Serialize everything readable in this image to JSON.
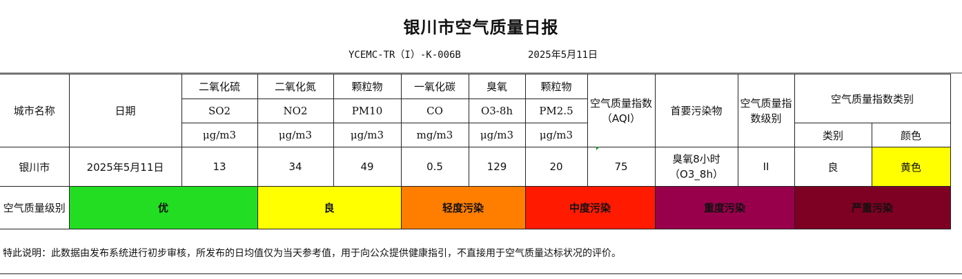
{
  "report": {
    "title": "银川市空气质量日报",
    "code": "YCEMC-TR（I）-K-006B",
    "date": "2025年5月11日"
  },
  "headers": {
    "city": "城市名称",
    "date": "日期",
    "so2": {
      "name": "二氧化硫",
      "symbol": "SO2",
      "unit": "μg/m3"
    },
    "no2": {
      "name": "二氧化氮",
      "symbol": "NO2",
      "unit": "μg/m3"
    },
    "pm10": {
      "name": "颗粒物",
      "symbol": "PM10",
      "unit": "μg/m3"
    },
    "co": {
      "name": "一氧化碳",
      "symbol": "CO",
      "unit": "mg/m3"
    },
    "o3": {
      "name": "臭氧",
      "symbol": "O3-8h",
      "unit": "μg/m3"
    },
    "pm25": {
      "name": "颗粒物",
      "symbol": "PM2.5",
      "unit": "μg/m3"
    },
    "aqi": "空气质量指数（AQI）",
    "primary": "首要污染物",
    "level": "空气质量指数级别",
    "category": "空气质量指数类别",
    "cat_type": "类别",
    "cat_color": "颜色"
  },
  "row": {
    "city": "银川市",
    "date": "2025年5月11日",
    "so2": "13",
    "no2": "34",
    "pm10": "49",
    "co": "0.5",
    "o3": "129",
    "pm25": "20",
    "aqi": "75",
    "primary": "臭氧8小时（O3_8h）",
    "level": "II",
    "category": "良",
    "color": "黄色"
  },
  "levels": {
    "label": "空气质量级别",
    "items": [
      {
        "name": "优",
        "color": "#22dd22"
      },
      {
        "name": "良",
        "color": "#ffff00"
      },
      {
        "name": "轻度污染",
        "color": "#ff7e00"
      },
      {
        "name": "中度污染",
        "color": "#ff1a00"
      },
      {
        "name": "重度污染",
        "color": "#99004c"
      },
      {
        "name": "严重污染",
        "color": "#7e0023"
      }
    ]
  },
  "note": "特此说明：此数据由发布系统进行初步审核，所发布的日均值仅为当天参考值，用于向公众提供健康指引，不直接用于空气质量达标状况的评价。",
  "colors": {
    "yellow_cell": "#ffff00"
  }
}
